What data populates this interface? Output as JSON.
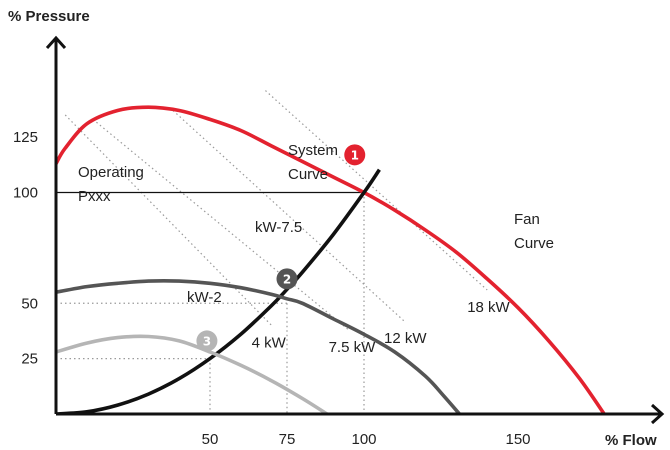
{
  "chart_data": {
    "type": "line",
    "xlabel": "% Flow",
    "ylabel": "% Pressure",
    "xlim": [
      0,
      198
    ],
    "ylim": [
      0,
      140
    ],
    "x_ticks": [
      50,
      75,
      100,
      150
    ],
    "y_ticks": [
      25,
      50,
      100,
      125
    ],
    "grid": false,
    "reference_line": {
      "y": 100
    },
    "drop_lines": [
      {
        "x": 100,
        "y": 100
      },
      {
        "x": 75,
        "y": 50
      },
      {
        "x": 50,
        "y": 25
      }
    ],
    "series": [
      {
        "name": "Fan Curve",
        "color": "#e3222f",
        "points": [
          [
            0,
            113
          ],
          [
            3,
            120
          ],
          [
            10,
            131
          ],
          [
            20,
            137
          ],
          [
            30,
            138.5
          ],
          [
            40,
            137
          ],
          [
            50,
            133
          ],
          [
            60,
            128
          ],
          [
            70,
            121
          ],
          [
            80,
            114
          ],
          [
            90,
            107
          ],
          [
            100,
            100
          ],
          [
            110,
            92
          ],
          [
            120,
            83
          ],
          [
            130,
            73
          ],
          [
            140,
            61
          ],
          [
            150,
            48
          ],
          [
            160,
            33
          ],
          [
            170,
            16
          ],
          [
            178,
            0
          ]
        ]
      },
      {
        "name": "System Curve",
        "color": "#111111",
        "points": [
          [
            0,
            0
          ],
          [
            10,
            1
          ],
          [
            20,
            4
          ],
          [
            30,
            9
          ],
          [
            40,
            16
          ],
          [
            50,
            25
          ],
          [
            60,
            36
          ],
          [
            70,
            49
          ],
          [
            75,
            56.3
          ],
          [
            80,
            64
          ],
          [
            90,
            81
          ],
          [
            100,
            100
          ],
          [
            105,
            110.3
          ]
        ]
      },
      {
        "color": "#555555",
        "points": [
          [
            0,
            55
          ],
          [
            10,
            57.5
          ],
          [
            20,
            59
          ],
          [
            30,
            60
          ],
          [
            40,
            60
          ],
          [
            50,
            59
          ],
          [
            60,
            57
          ],
          [
            70,
            54
          ],
          [
            75,
            52
          ],
          [
            80,
            50
          ],
          [
            90,
            43
          ],
          [
            100,
            36
          ],
          [
            110,
            28
          ],
          [
            120,
            17
          ],
          [
            126,
            8
          ],
          [
            131,
            0
          ]
        ]
      },
      {
        "color": "#b5b5b5",
        "points": [
          [
            0,
            28
          ],
          [
            10,
            32
          ],
          [
            20,
            34.5
          ],
          [
            30,
            35
          ],
          [
            40,
            33
          ],
          [
            50,
            28
          ],
          [
            60,
            22
          ],
          [
            70,
            15
          ],
          [
            80,
            7
          ],
          [
            88,
            0
          ]
        ]
      }
    ],
    "power_lines": [
      {
        "label": "4 kW",
        "points": [
          [
            3,
            135
          ],
          [
            70,
            40
          ]
        ]
      },
      {
        "label": "7.5 kW",
        "points": [
          [
            12,
            133
          ],
          [
            95,
            38
          ]
        ]
      },
      {
        "label": "12 kW",
        "points": [
          [
            38,
            137
          ],
          [
            113,
            42
          ]
        ]
      },
      {
        "label": "18 kW",
        "points": [
          [
            68,
            146
          ],
          [
            140,
            56
          ]
        ]
      }
    ],
    "annotations": {
      "operating_point": [
        "Operating",
        "Pxxx"
      ],
      "system_curve": [
        "System",
        "Curve"
      ],
      "fan_curve": [
        "Fan",
        "Curve"
      ],
      "kw_7_5": "kW-7.5",
      "kw_2": "kW-2"
    },
    "markers": [
      {
        "number": "1",
        "x": 97,
        "y": 117,
        "color": "#e3222f"
      },
      {
        "number": "2",
        "x": 75,
        "y": 61,
        "color": "#555555"
      },
      {
        "number": "3",
        "x": 49,
        "y": 33,
        "color": "#b5b5b5"
      }
    ]
  }
}
